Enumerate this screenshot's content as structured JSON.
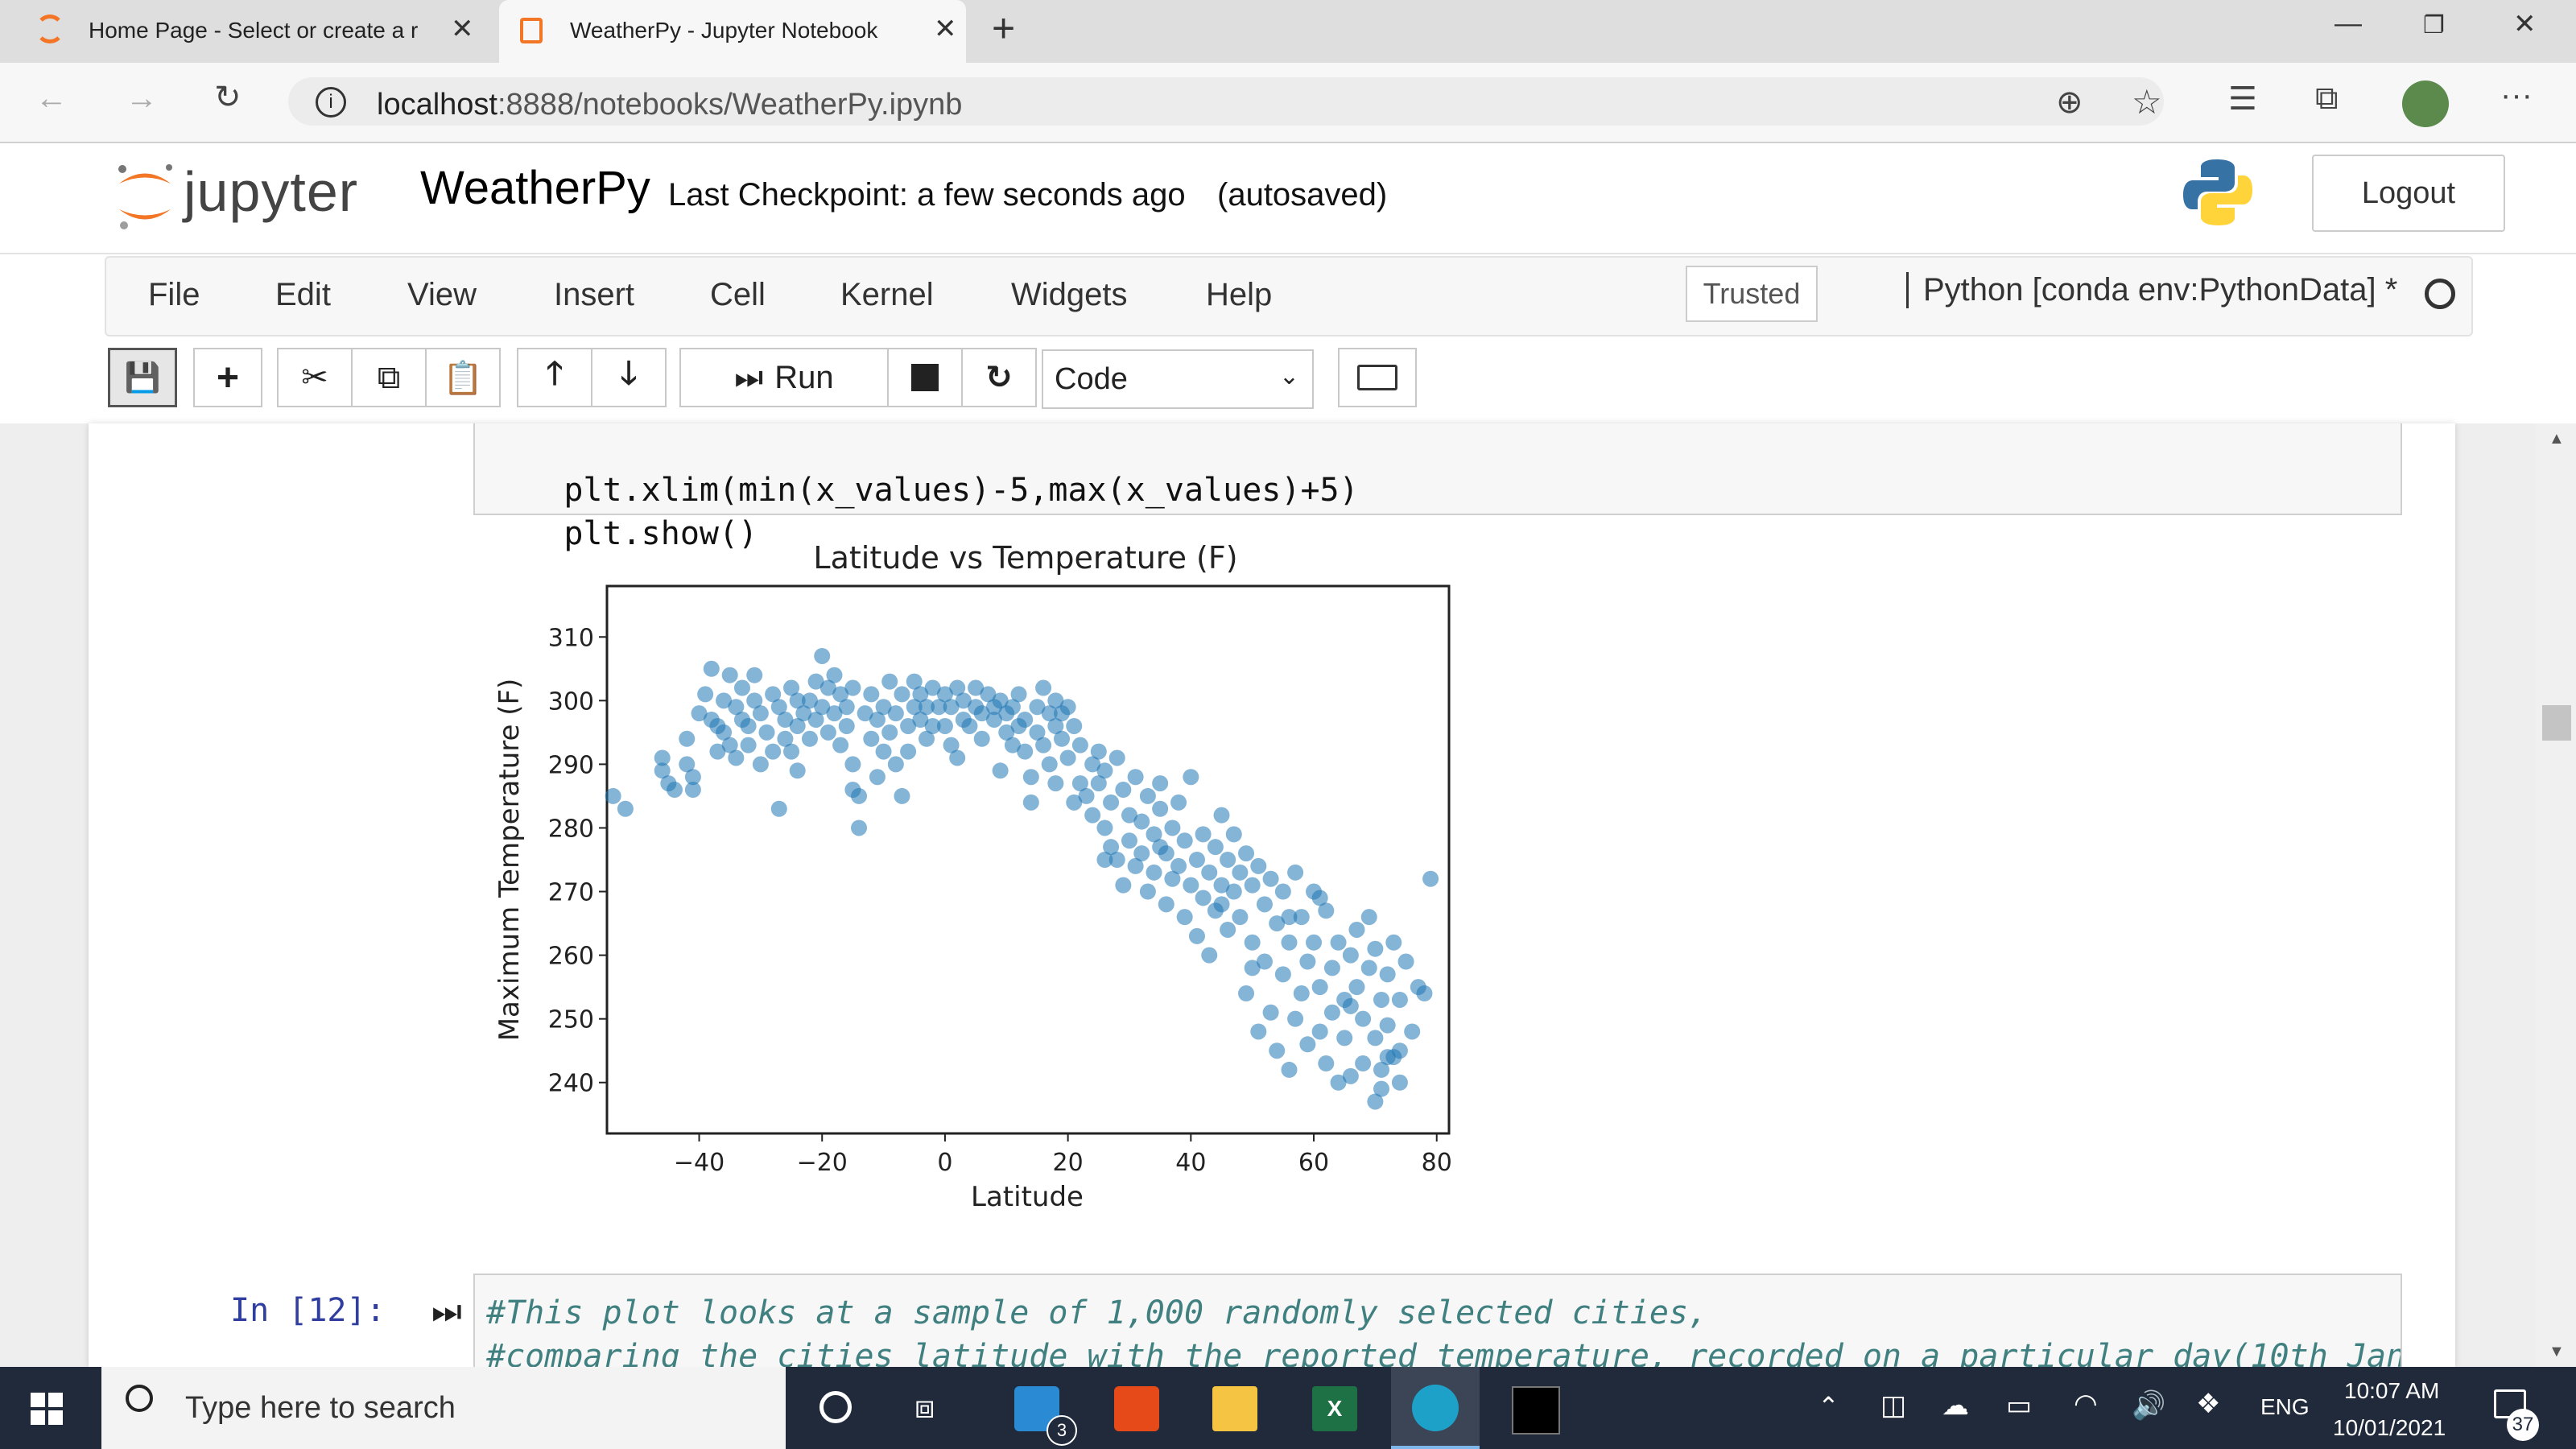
{
  "browser": {
    "tabs": [
      {
        "label": "Home Page - Select or create a r",
        "active": false
      },
      {
        "label": "WeatherPy - Jupyter Notebook",
        "active": true
      }
    ],
    "address": {
      "host": "localhost",
      "path": ":8888/notebooks/WeatherPy.ipynb"
    }
  },
  "jupyter": {
    "logo_text": "jupyter",
    "notebook_name": "WeatherPy",
    "checkpoint": "Last Checkpoint: a few seconds ago",
    "autosave_status": "(autosaved)",
    "logout_label": "Logout",
    "menu": [
      "File",
      "Edit",
      "View",
      "Insert",
      "Cell",
      "Kernel",
      "Widgets",
      "Help"
    ],
    "trusted_label": "Trusted",
    "kernel_name": "Python [conda env:PythonData] *",
    "toolbar": {
      "run_label": "Run",
      "cell_type": "Code"
    }
  },
  "cells": {
    "code_above": [
      "plt.xlim(min(x_values)-5,max(x_values)+5)",
      "plt.show()"
    ],
    "next_prompt": "In [12]:",
    "next_comment": [
      "#This plot looks at a sample of 1,000 randomly selected cities,",
      "#comparing the cities latitude with the reported temperature, recorded on a particular day(10th Jan"
    ]
  },
  "chart_data": {
    "type": "scatter",
    "title": "Latitude vs Temperature (F)",
    "xlabel": "Latitude",
    "ylabel": "Maximum Temperature (F)",
    "xlim": [
      -55,
      82
    ],
    "ylim": [
      232,
      318
    ],
    "xticks": [
      -40,
      -20,
      0,
      20,
      40,
      60,
      80
    ],
    "yticks": [
      240,
      250,
      260,
      270,
      280,
      290,
      300,
      310
    ],
    "grid": false,
    "color": "#1f77b4",
    "points": [
      [
        -54,
        285
      ],
      [
        -52,
        283
      ],
      [
        -46,
        291
      ],
      [
        -46,
        289
      ],
      [
        -45,
        287
      ],
      [
        -44,
        286
      ],
      [
        -42,
        294
      ],
      [
        -42,
        290
      ],
      [
        -41,
        288
      ],
      [
        -41,
        286
      ],
      [
        -40,
        298
      ],
      [
        -39,
        301
      ],
      [
        -38,
        305
      ],
      [
        -38,
        297
      ],
      [
        -37,
        296
      ],
      [
        -37,
        292
      ],
      [
        -36,
        300
      ],
      [
        -36,
        295
      ],
      [
        -35,
        304
      ],
      [
        -35,
        293
      ],
      [
        -34,
        299
      ],
      [
        -34,
        291
      ],
      [
        -33,
        297
      ],
      [
        -33,
        302
      ],
      [
        -32,
        296
      ],
      [
        -32,
        293
      ],
      [
        -31,
        300
      ],
      [
        -31,
        304
      ],
      [
        -30,
        298
      ],
      [
        -30,
        290
      ],
      [
        -29,
        295
      ],
      [
        -28,
        301
      ],
      [
        -28,
        292
      ],
      [
        -27,
        299
      ],
      [
        -26,
        294
      ],
      [
        -26,
        297
      ],
      [
        -25,
        302
      ],
      [
        -25,
        292
      ],
      [
        -24,
        300
      ],
      [
        -24,
        296
      ],
      [
        -23,
        298
      ],
      [
        -22,
        294
      ],
      [
        -22,
        300
      ],
      [
        -21,
        303
      ],
      [
        -21,
        297
      ],
      [
        -20,
        307
      ],
      [
        -20,
        299
      ],
      [
        -19,
        302
      ],
      [
        -19,
        295
      ],
      [
        -18,
        304
      ],
      [
        -18,
        298
      ],
      [
        -17,
        301
      ],
      [
        -17,
        293
      ],
      [
        -16,
        296
      ],
      [
        -16,
        299
      ],
      [
        -15,
        302
      ],
      [
        -15,
        290
      ],
      [
        -14,
        285
      ],
      [
        -14,
        280
      ],
      [
        -13,
        298
      ],
      [
        -12,
        294
      ],
      [
        -12,
        301
      ],
      [
        -11,
        297
      ],
      [
        -10,
        292
      ],
      [
        -10,
        299
      ],
      [
        -9,
        303
      ],
      [
        -9,
        295
      ],
      [
        -8,
        290
      ],
      [
        -8,
        298
      ],
      [
        -7,
        301
      ],
      [
        -6,
        296
      ],
      [
        -6,
        292
      ],
      [
        -5,
        303
      ],
      [
        -5,
        299
      ],
      [
        -4,
        297
      ],
      [
        -4,
        301
      ],
      [
        -3,
        294
      ],
      [
        -3,
        299
      ],
      [
        -2,
        302
      ],
      [
        -2,
        296
      ],
      [
        -1,
        299
      ],
      [
        0,
        301
      ],
      [
        0,
        296
      ],
      [
        1,
        293
      ],
      [
        1,
        299
      ],
      [
        2,
        302
      ],
      [
        3,
        297
      ],
      [
        3,
        300
      ],
      [
        4,
        296
      ],
      [
        5,
        299
      ],
      [
        5,
        302
      ],
      [
        6,
        294
      ],
      [
        6,
        298
      ],
      [
        7,
        301
      ],
      [
        8,
        297
      ],
      [
        8,
        299
      ],
      [
        9,
        300
      ],
      [
        10,
        295
      ],
      [
        10,
        298
      ],
      [
        11,
        293
      ],
      [
        11,
        299
      ],
      [
        12,
        296
      ],
      [
        12,
        301
      ],
      [
        13,
        292
      ],
      [
        13,
        297
      ],
      [
        14,
        288
      ],
      [
        14,
        284
      ],
      [
        15,
        299
      ],
      [
        15,
        295
      ],
      [
        16,
        302
      ],
      [
        16,
        293
      ],
      [
        17,
        298
      ],
      [
        17,
        290
      ],
      [
        18,
        300
      ],
      [
        18,
        296
      ],
      [
        19,
        294
      ],
      [
        19,
        298
      ],
      [
        20,
        299
      ],
      [
        20,
        291
      ],
      [
        21,
        296
      ],
      [
        22,
        287
      ],
      [
        22,
        293
      ],
      [
        23,
        285
      ],
      [
        24,
        290
      ],
      [
        24,
        282
      ],
      [
        25,
        287
      ],
      [
        25,
        292
      ],
      [
        26,
        280
      ],
      [
        26,
        289
      ],
      [
        27,
        277
      ],
      [
        27,
        284
      ],
      [
        28,
        291
      ],
      [
        28,
        275
      ],
      [
        29,
        286
      ],
      [
        29,
        271
      ],
      [
        30,
        282
      ],
      [
        30,
        278
      ],
      [
        31,
        288
      ],
      [
        31,
        274
      ],
      [
        32,
        281
      ],
      [
        32,
        276
      ],
      [
        33,
        285
      ],
      [
        33,
        270
      ],
      [
        34,
        279
      ],
      [
        34,
        273
      ],
      [
        35,
        287
      ],
      [
        35,
        283
      ],
      [
        36,
        276
      ],
      [
        36,
        268
      ],
      [
        37,
        280
      ],
      [
        37,
        272
      ],
      [
        38,
        274
      ],
      [
        38,
        284
      ],
      [
        39,
        266
      ],
      [
        39,
        278
      ],
      [
        40,
        271
      ],
      [
        40,
        288
      ],
      [
        41,
        275
      ],
      [
        41,
        263
      ],
      [
        42,
        279
      ],
      [
        42,
        269
      ],
      [
        43,
        273
      ],
      [
        43,
        260
      ],
      [
        44,
        277
      ],
      [
        44,
        267
      ],
      [
        45,
        282
      ],
      [
        45,
        271
      ],
      [
        46,
        264
      ],
      [
        46,
        275
      ],
      [
        47,
        270
      ],
      [
        47,
        279
      ],
      [
        48,
        273
      ],
      [
        48,
        266
      ],
      [
        49,
        276
      ],
      [
        49,
        254
      ],
      [
        50,
        262
      ],
      [
        50,
        271
      ],
      [
        51,
        274
      ],
      [
        51,
        248
      ],
      [
        52,
        268
      ],
      [
        52,
        259
      ],
      [
        53,
        272
      ],
      [
        53,
        251
      ],
      [
        54,
        265
      ],
      [
        54,
        245
      ],
      [
        55,
        270
      ],
      [
        55,
        257
      ],
      [
        56,
        262
      ],
      [
        56,
        242
      ],
      [
        57,
        273
      ],
      [
        57,
        250
      ],
      [
        58,
        266
      ],
      [
        58,
        254
      ],
      [
        59,
        259
      ],
      [
        59,
        246
      ],
      [
        60,
        270
      ],
      [
        60,
        262
      ],
      [
        61,
        255
      ],
      [
        61,
        248
      ],
      [
        62,
        267
      ],
      [
        62,
        243
      ],
      [
        63,
        258
      ],
      [
        63,
        251
      ],
      [
        64,
        262
      ],
      [
        64,
        240
      ],
      [
        65,
        253
      ],
      [
        65,
        247
      ],
      [
        66,
        260
      ],
      [
        66,
        241
      ],
      [
        67,
        264
      ],
      [
        67,
        255
      ],
      [
        68,
        250
      ],
      [
        68,
        243
      ],
      [
        69,
        266
      ],
      [
        69,
        258
      ],
      [
        70,
        247
      ],
      [
        70,
        261
      ],
      [
        71,
        253
      ],
      [
        71,
        242
      ],
      [
        72,
        257
      ],
      [
        72,
        249
      ],
      [
        73,
        262
      ],
      [
        73,
        244
      ],
      [
        74,
        253
      ],
      [
        74,
        240
      ],
      [
        75,
        259
      ],
      [
        76,
        248
      ],
      [
        77,
        255
      ],
      [
        78,
        254
      ],
      [
        79,
        272
      ],
      [
        -27,
        283
      ],
      [
        -24,
        289
      ],
      [
        -15,
        286
      ],
      [
        -11,
        288
      ],
      [
        -7,
        285
      ],
      [
        2,
        291
      ],
      [
        9,
        289
      ],
      [
        18,
        287
      ],
      [
        21,
        284
      ],
      [
        26,
        275
      ],
      [
        35,
        277
      ],
      [
        45,
        268
      ],
      [
        50,
        258
      ],
      [
        56,
        266
      ],
      [
        61,
        269
      ],
      [
        66,
        252
      ],
      [
        70,
        237
      ],
      [
        71,
        239
      ],
      [
        72,
        244
      ],
      [
        74,
        245
      ]
    ]
  },
  "taskbar": {
    "search_placeholder": "Type here to search",
    "language": "ENG",
    "time": "10:07 AM",
    "date": "10/01/2021",
    "mail_badge": "3",
    "notification_badge": "37"
  }
}
